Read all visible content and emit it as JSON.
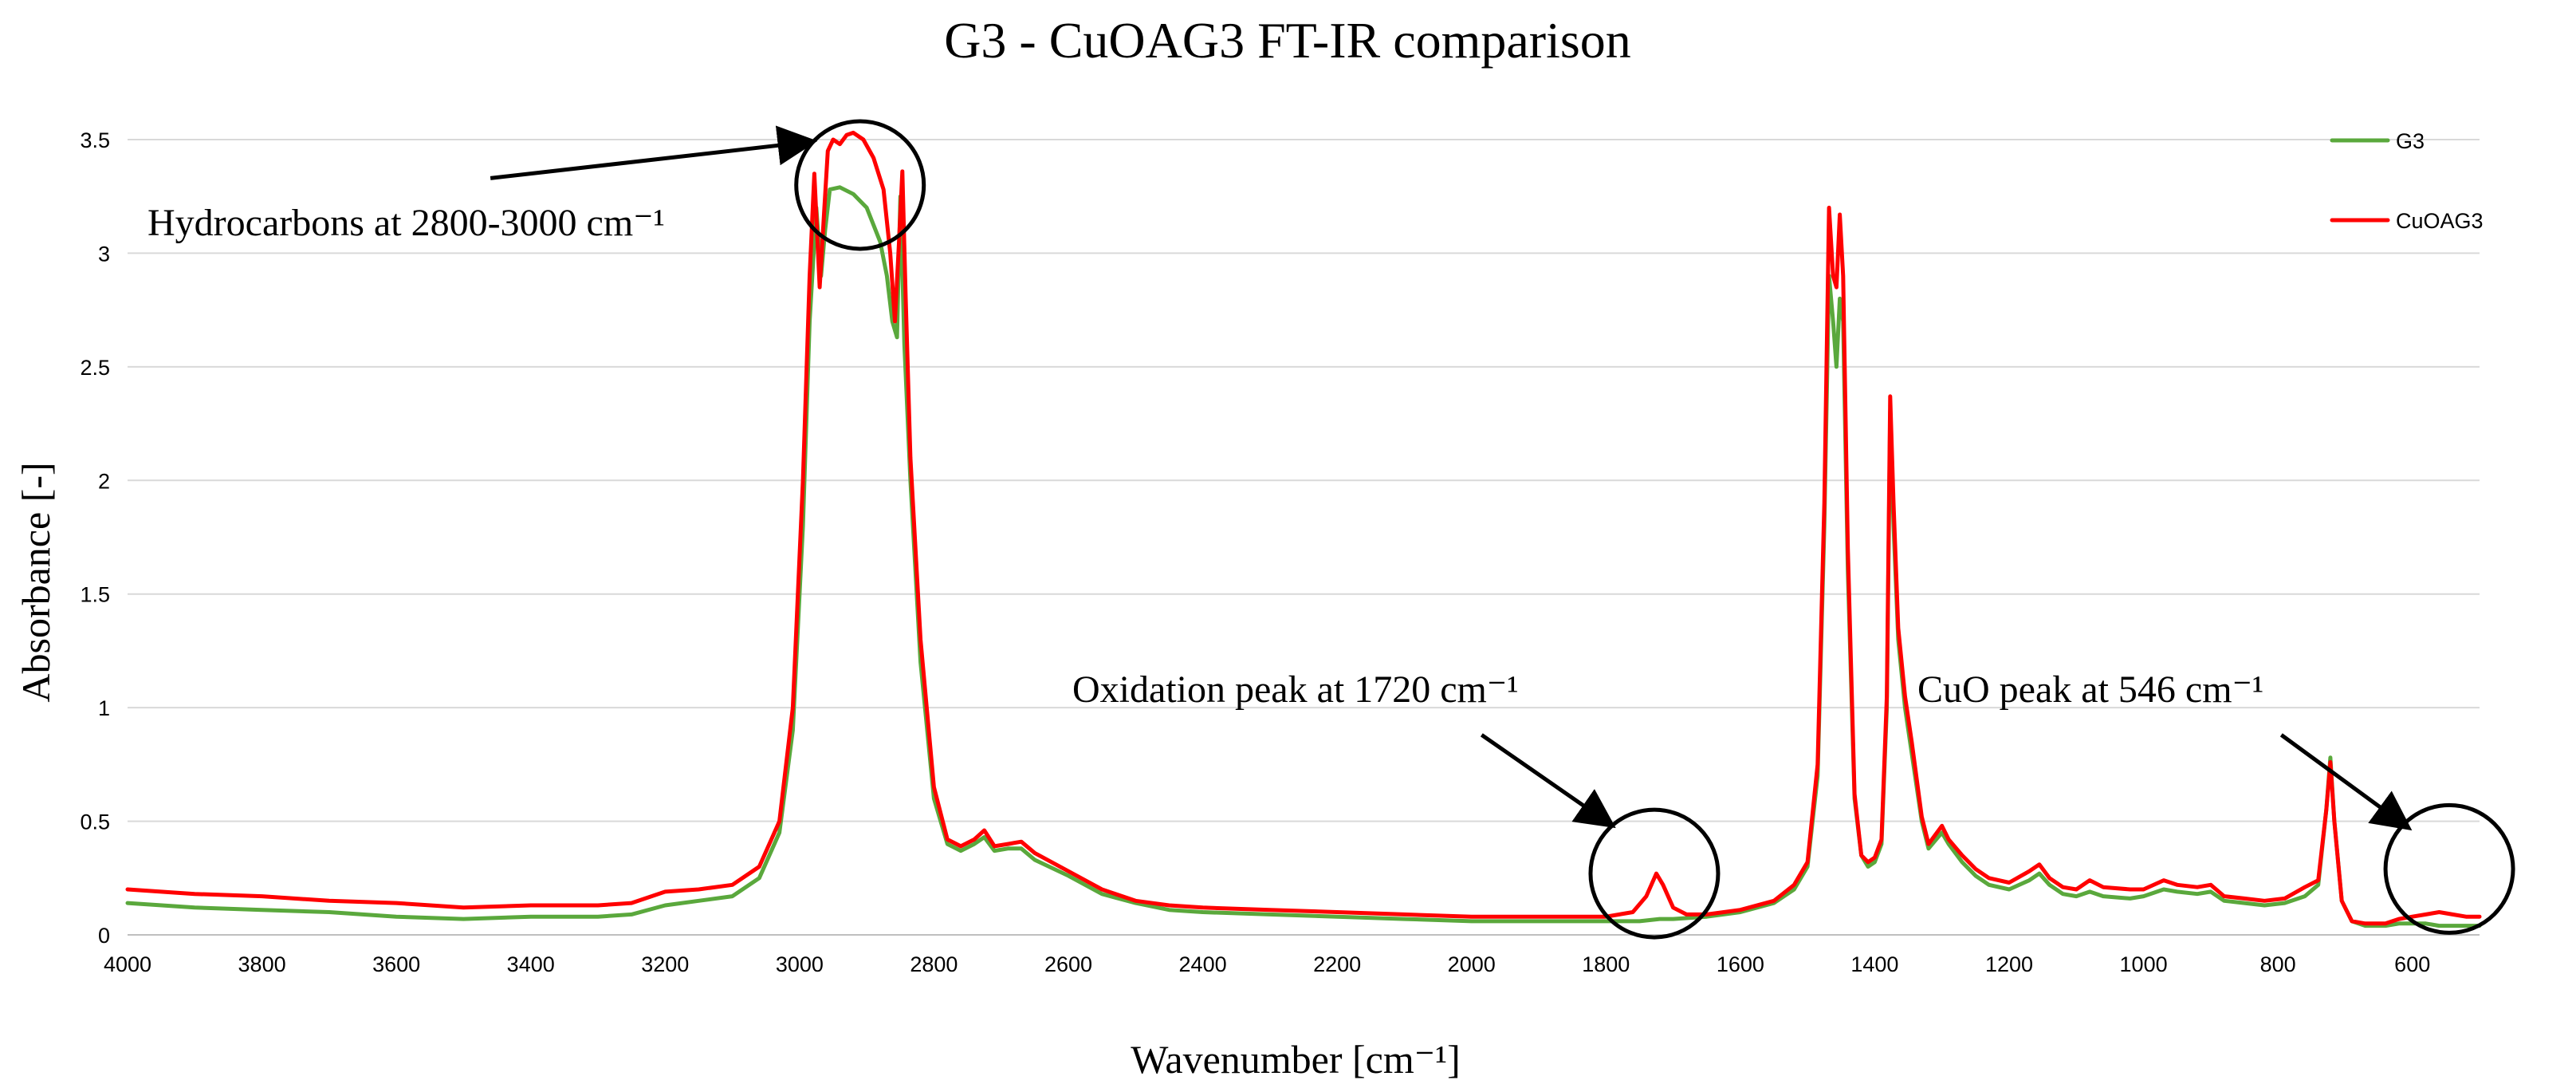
{
  "chart_data": {
    "type": "line",
    "title": "G3 - CuOAG3 FT-IR comparison",
    "xlabel": "Wavenumber [cm⁻¹]",
    "ylabel": "Absorbance [-]",
    "xlim": [
      4000,
      500
    ],
    "ylim": [
      0,
      3.7
    ],
    "x_ticks": [
      4000,
      3800,
      3600,
      3400,
      3200,
      3000,
      2800,
      2600,
      2400,
      2200,
      2000,
      1800,
      1600,
      1400,
      1200,
      1000,
      800,
      600
    ],
    "y_ticks": [
      0,
      0.5,
      1,
      1.5,
      2,
      2.5,
      3,
      3.5
    ],
    "y_tick_labels": [
      "0",
      "0.5",
      "1",
      "1.5",
      "2",
      "2.5",
      "3",
      "3.5"
    ],
    "grid": "horizontal",
    "legend": {
      "position": "top-right",
      "entries": [
        "G3",
        "CuOAG3"
      ]
    },
    "series": [
      {
        "name": "G3",
        "color": "#5aa83c",
        "points": [
          [
            4000,
            0.14
          ],
          [
            3900,
            0.12
          ],
          [
            3800,
            0.11
          ],
          [
            3700,
            0.1
          ],
          [
            3600,
            0.08
          ],
          [
            3500,
            0.07
          ],
          [
            3400,
            0.08
          ],
          [
            3300,
            0.08
          ],
          [
            3250,
            0.09
          ],
          [
            3200,
            0.13
          ],
          [
            3150,
            0.15
          ],
          [
            3100,
            0.17
          ],
          [
            3060,
            0.25
          ],
          [
            3030,
            0.45
          ],
          [
            3010,
            0.9
          ],
          [
            2995,
            1.8
          ],
          [
            2985,
            2.7
          ],
          [
            2975,
            3.2
          ],
          [
            2968,
            2.9
          ],
          [
            2962,
            3.1
          ],
          [
            2955,
            3.28
          ],
          [
            2940,
            3.29
          ],
          [
            2920,
            3.26
          ],
          [
            2900,
            3.2
          ],
          [
            2880,
            3.05
          ],
          [
            2870,
            2.9
          ],
          [
            2862,
            2.7
          ],
          [
            2855,
            2.63
          ],
          [
            2850,
            3.25
          ],
          [
            2844,
            2.6
          ],
          [
            2835,
            2.0
          ],
          [
            2820,
            1.2
          ],
          [
            2800,
            0.6
          ],
          [
            2780,
            0.4
          ],
          [
            2760,
            0.37
          ],
          [
            2740,
            0.4
          ],
          [
            2725,
            0.43
          ],
          [
            2710,
            0.37
          ],
          [
            2690,
            0.38
          ],
          [
            2670,
            0.38
          ],
          [
            2650,
            0.33
          ],
          [
            2600,
            0.26
          ],
          [
            2550,
            0.18
          ],
          [
            2500,
            0.14
          ],
          [
            2450,
            0.11
          ],
          [
            2400,
            0.1
          ],
          [
            2300,
            0.09
          ],
          [
            2200,
            0.08
          ],
          [
            2100,
            0.07
          ],
          [
            2000,
            0.06
          ],
          [
            1900,
            0.06
          ],
          [
            1800,
            0.06
          ],
          [
            1750,
            0.06
          ],
          [
            1720,
            0.07
          ],
          [
            1700,
            0.07
          ],
          [
            1650,
            0.08
          ],
          [
            1600,
            0.1
          ],
          [
            1550,
            0.14
          ],
          [
            1520,
            0.2
          ],
          [
            1500,
            0.3
          ],
          [
            1485,
            0.7
          ],
          [
            1475,
            1.8
          ],
          [
            1468,
            2.9
          ],
          [
            1462,
            2.7
          ],
          [
            1457,
            2.5
          ],
          [
            1452,
            2.8
          ],
          [
            1447,
            2.7
          ],
          [
            1440,
            1.6
          ],
          [
            1430,
            0.6
          ],
          [
            1420,
            0.35
          ],
          [
            1410,
            0.3
          ],
          [
            1400,
            0.32
          ],
          [
            1390,
            0.4
          ],
          [
            1382,
            1.0
          ],
          [
            1377,
            2.3
          ],
          [
            1372,
            1.8
          ],
          [
            1365,
            1.3
          ],
          [
            1355,
            1.0
          ],
          [
            1345,
            0.8
          ],
          [
            1330,
            0.5
          ],
          [
            1320,
            0.38
          ],
          [
            1300,
            0.45
          ],
          [
            1290,
            0.4
          ],
          [
            1270,
            0.32
          ],
          [
            1250,
            0.26
          ],
          [
            1230,
            0.22
          ],
          [
            1200,
            0.2
          ],
          [
            1170,
            0.24
          ],
          [
            1155,
            0.27
          ],
          [
            1140,
            0.22
          ],
          [
            1120,
            0.18
          ],
          [
            1100,
            0.17
          ],
          [
            1080,
            0.19
          ],
          [
            1060,
            0.17
          ],
          [
            1020,
            0.16
          ],
          [
            1000,
            0.17
          ],
          [
            970,
            0.2
          ],
          [
            950,
            0.19
          ],
          [
            920,
            0.18
          ],
          [
            900,
            0.19
          ],
          [
            880,
            0.15
          ],
          [
            850,
            0.14
          ],
          [
            820,
            0.13
          ],
          [
            790,
            0.14
          ],
          [
            760,
            0.17
          ],
          [
            740,
            0.22
          ],
          [
            728,
            0.55
          ],
          [
            722,
            0.78
          ],
          [
            716,
            0.5
          ],
          [
            705,
            0.15
          ],
          [
            690,
            0.06
          ],
          [
            670,
            0.04
          ],
          [
            640,
            0.04
          ],
          [
            620,
            0.05
          ],
          [
            600,
            0.05
          ],
          [
            580,
            0.05
          ],
          [
            560,
            0.04
          ],
          [
            540,
            0.04
          ],
          [
            520,
            0.04
          ],
          [
            500,
            0.04
          ]
        ]
      },
      {
        "name": "CuOAG3",
        "color": "#ff0000",
        "points": [
          [
            4000,
            0.2
          ],
          [
            3900,
            0.18
          ],
          [
            3800,
            0.17
          ],
          [
            3700,
            0.15
          ],
          [
            3600,
            0.14
          ],
          [
            3500,
            0.12
          ],
          [
            3400,
            0.13
          ],
          [
            3300,
            0.13
          ],
          [
            3250,
            0.14
          ],
          [
            3200,
            0.19
          ],
          [
            3150,
            0.2
          ],
          [
            3100,
            0.22
          ],
          [
            3060,
            0.3
          ],
          [
            3030,
            0.5
          ],
          [
            3010,
            1.0
          ],
          [
            2995,
            2.0
          ],
          [
            2985,
            2.9
          ],
          [
            2978,
            3.35
          ],
          [
            2970,
            2.85
          ],
          [
            2963,
            3.2
          ],
          [
            2958,
            3.45
          ],
          [
            2950,
            3.5
          ],
          [
            2940,
            3.48
          ],
          [
            2930,
            3.52
          ],
          [
            2920,
            3.53
          ],
          [
            2905,
            3.5
          ],
          [
            2890,
            3.42
          ],
          [
            2875,
            3.28
          ],
          [
            2865,
            3.0
          ],
          [
            2858,
            2.7
          ],
          [
            2852,
            3.05
          ],
          [
            2847,
            3.36
          ],
          [
            2842,
            2.8
          ],
          [
            2835,
            2.1
          ],
          [
            2820,
            1.3
          ],
          [
            2800,
            0.65
          ],
          [
            2780,
            0.42
          ],
          [
            2760,
            0.39
          ],
          [
            2740,
            0.42
          ],
          [
            2725,
            0.46
          ],
          [
            2710,
            0.39
          ],
          [
            2690,
            0.4
          ],
          [
            2670,
            0.41
          ],
          [
            2650,
            0.36
          ],
          [
            2600,
            0.28
          ],
          [
            2550,
            0.2
          ],
          [
            2500,
            0.15
          ],
          [
            2450,
            0.13
          ],
          [
            2400,
            0.12
          ],
          [
            2300,
            0.11
          ],
          [
            2200,
            0.1
          ],
          [
            2100,
            0.09
          ],
          [
            2000,
            0.08
          ],
          [
            1900,
            0.08
          ],
          [
            1800,
            0.08
          ],
          [
            1760,
            0.1
          ],
          [
            1740,
            0.17
          ],
          [
            1725,
            0.27
          ],
          [
            1715,
            0.22
          ],
          [
            1700,
            0.12
          ],
          [
            1680,
            0.09
          ],
          [
            1650,
            0.09
          ],
          [
            1600,
            0.11
          ],
          [
            1550,
            0.15
          ],
          [
            1520,
            0.22
          ],
          [
            1500,
            0.32
          ],
          [
            1485,
            0.75
          ],
          [
            1475,
            1.9
          ],
          [
            1468,
            3.2
          ],
          [
            1462,
            2.9
          ],
          [
            1457,
            2.85
          ],
          [
            1452,
            3.17
          ],
          [
            1447,
            2.9
          ],
          [
            1440,
            1.7
          ],
          [
            1430,
            0.62
          ],
          [
            1420,
            0.35
          ],
          [
            1410,
            0.32
          ],
          [
            1400,
            0.34
          ],
          [
            1390,
            0.42
          ],
          [
            1382,
            1.05
          ],
          [
            1377,
            2.37
          ],
          [
            1372,
            1.9
          ],
          [
            1365,
            1.35
          ],
          [
            1355,
            1.05
          ],
          [
            1345,
            0.85
          ],
          [
            1330,
            0.52
          ],
          [
            1320,
            0.4
          ],
          [
            1300,
            0.48
          ],
          [
            1290,
            0.42
          ],
          [
            1270,
            0.35
          ],
          [
            1250,
            0.29
          ],
          [
            1230,
            0.25
          ],
          [
            1200,
            0.23
          ],
          [
            1170,
            0.28
          ],
          [
            1155,
            0.31
          ],
          [
            1140,
            0.25
          ],
          [
            1120,
            0.21
          ],
          [
            1100,
            0.2
          ],
          [
            1080,
            0.24
          ],
          [
            1060,
            0.21
          ],
          [
            1020,
            0.2
          ],
          [
            1000,
            0.2
          ],
          [
            970,
            0.24
          ],
          [
            950,
            0.22
          ],
          [
            920,
            0.21
          ],
          [
            900,
            0.22
          ],
          [
            880,
            0.17
          ],
          [
            850,
            0.16
          ],
          [
            820,
            0.15
          ],
          [
            790,
            0.16
          ],
          [
            760,
            0.21
          ],
          [
            740,
            0.24
          ],
          [
            728,
            0.55
          ],
          [
            722,
            0.76
          ],
          [
            716,
            0.5
          ],
          [
            705,
            0.15
          ],
          [
            690,
            0.06
          ],
          [
            670,
            0.05
          ],
          [
            640,
            0.05
          ],
          [
            620,
            0.07
          ],
          [
            600,
            0.08
          ],
          [
            580,
            0.09
          ],
          [
            560,
            0.1
          ],
          [
            540,
            0.09
          ],
          [
            520,
            0.08
          ],
          [
            500,
            0.08
          ]
        ]
      }
    ],
    "annotations": [
      {
        "text": "Hydrocarbons at 2800-3000 cm⁻¹",
        "circle_at": [
          2910,
          3.3
        ],
        "arrow_from": [
          3460,
          3.33
        ],
        "arrow_to": [
          2985,
          3.49
        ]
      },
      {
        "text": "Oxidation peak at 1720 cm⁻¹",
        "circle_at": [
          1728,
          0.27
        ],
        "arrow_from": [
          1985,
          0.88
        ],
        "arrow_to": [
          1795,
          0.49
        ]
      },
      {
        "text": "CuO peak at 546 cm⁻¹",
        "circle_at": [
          545,
          0.29
        ],
        "arrow_from": [
          795,
          0.88
        ],
        "arrow_to": [
          610,
          0.48
        ]
      }
    ]
  }
}
